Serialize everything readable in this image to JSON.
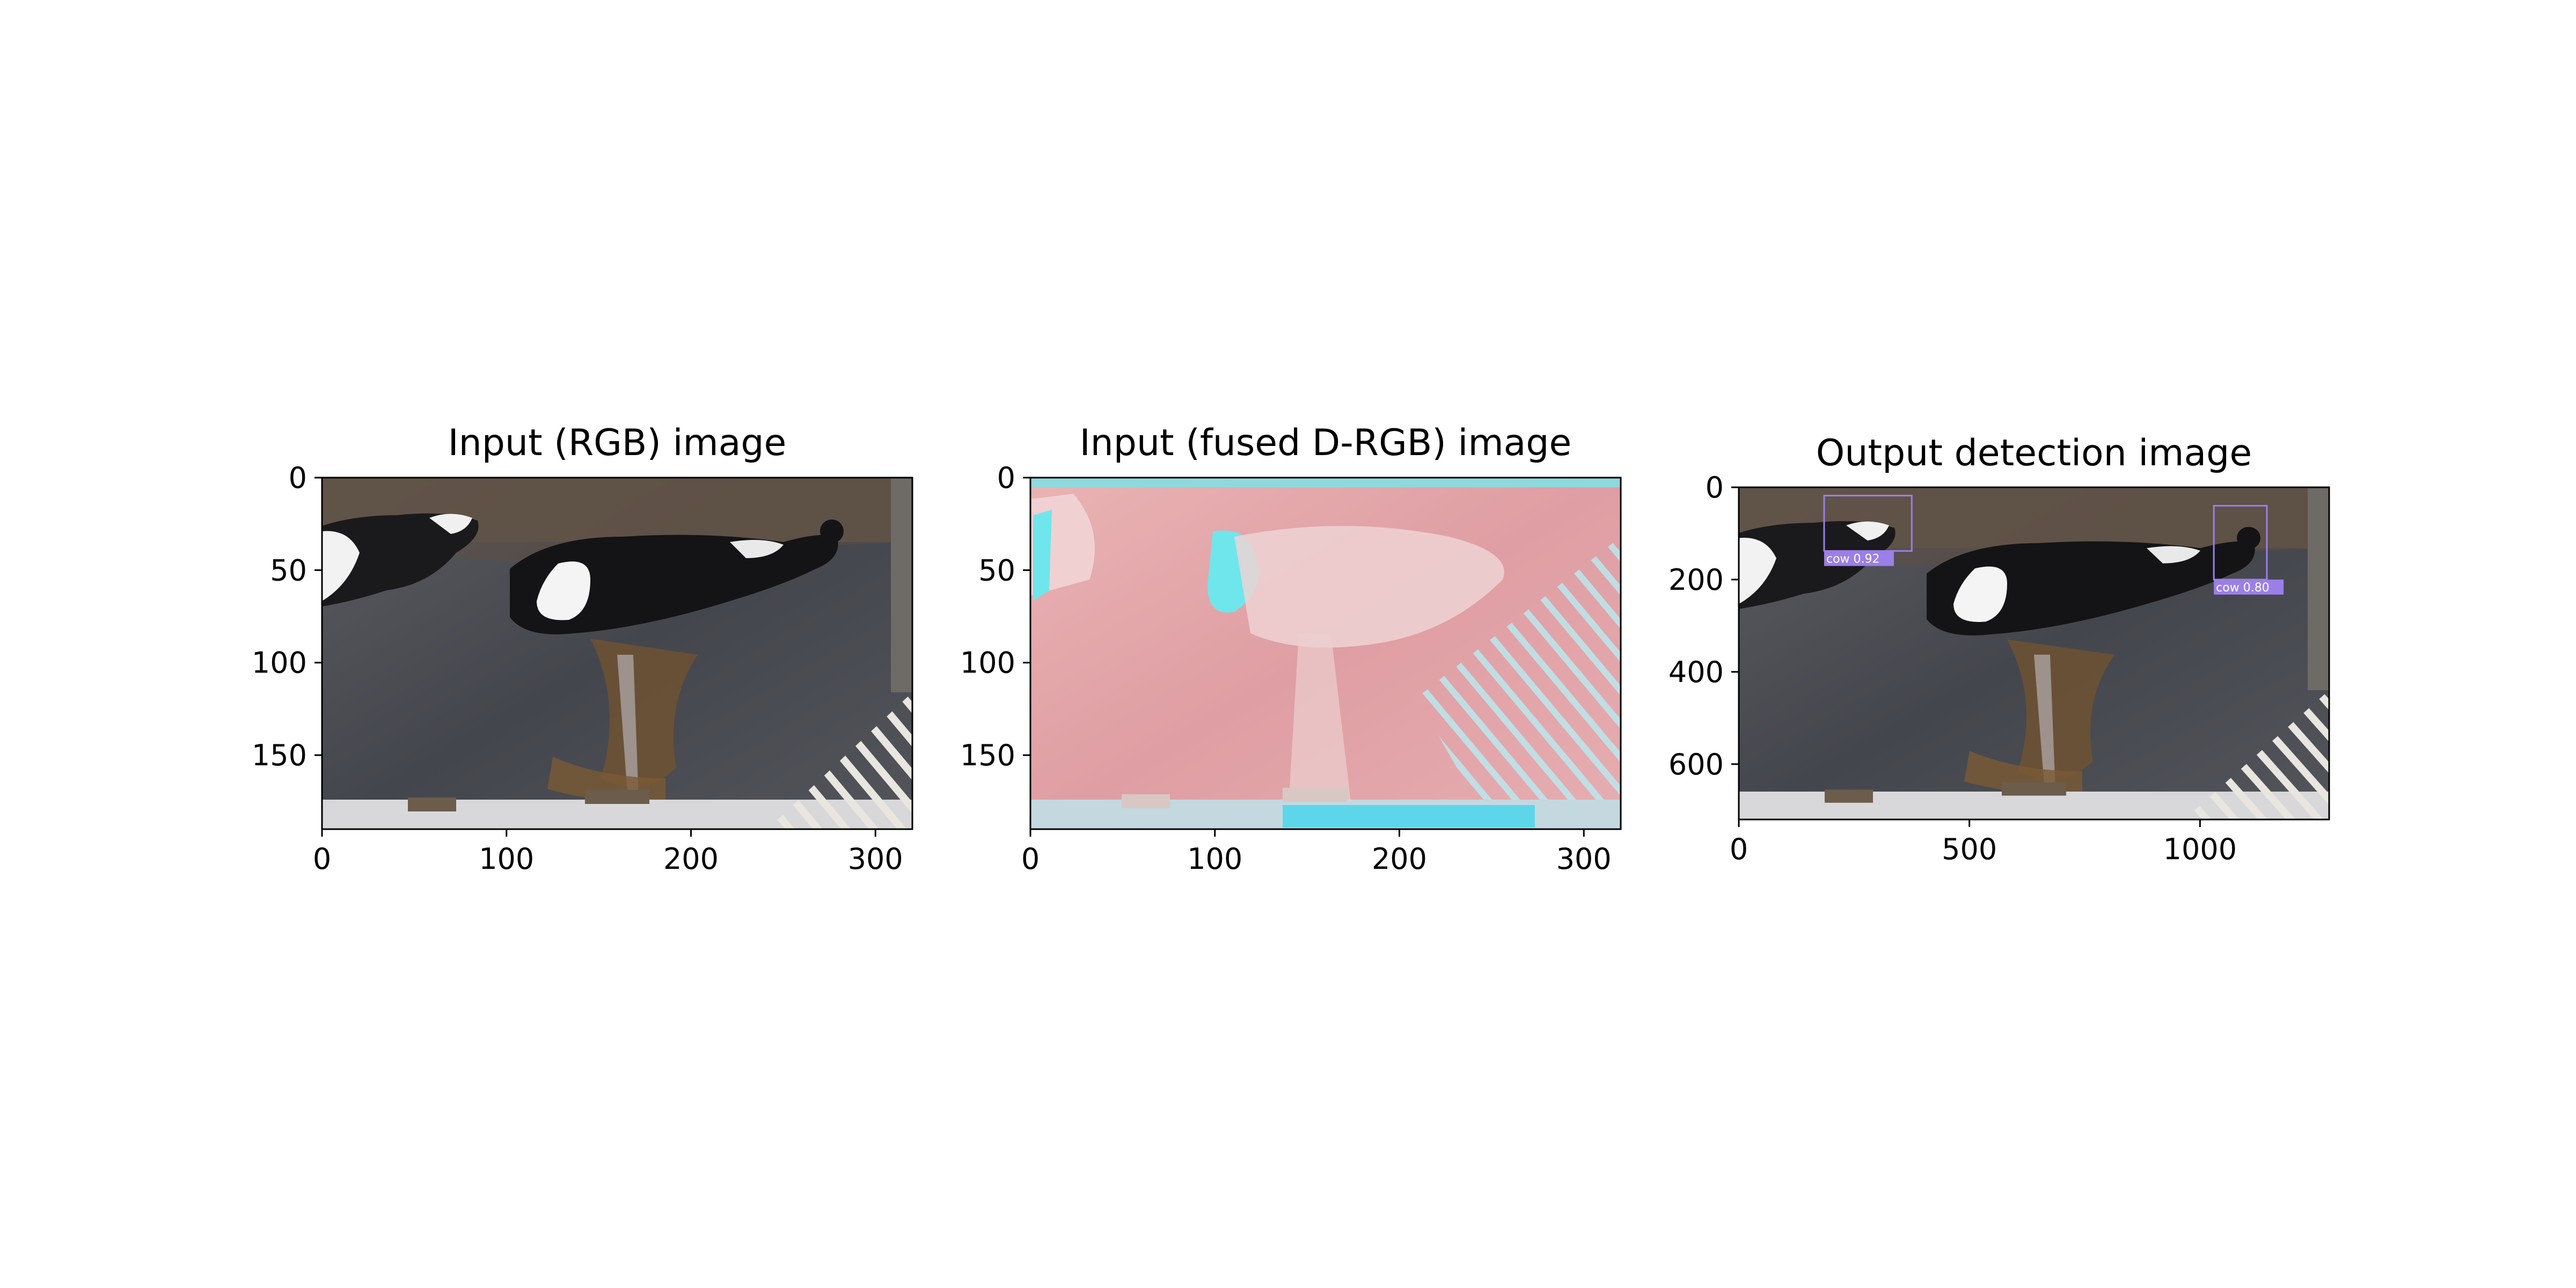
{
  "figure": {
    "panels": [
      {
        "title": "Input (RGB) image",
        "x_ticks": [
          "0",
          "100",
          "200",
          "300"
        ],
        "y_ticks": [
          "0",
          "50",
          "100",
          "150"
        ],
        "x_tick_values": [
          0,
          100,
          200,
          300
        ],
        "y_tick_values": [
          0,
          50,
          100,
          150
        ],
        "x_range": [
          0,
          320
        ],
        "y_range": [
          0,
          190
        ]
      },
      {
        "title": "Input (fused D-RGB) image",
        "x_ticks": [
          "0",
          "100",
          "200",
          "300"
        ],
        "y_ticks": [
          "0",
          "50",
          "100",
          "150"
        ],
        "x_tick_values": [
          0,
          100,
          200,
          300
        ],
        "y_tick_values": [
          0,
          50,
          100,
          150
        ],
        "x_range": [
          0,
          320
        ],
        "y_range": [
          0,
          190
        ]
      },
      {
        "title": "Output detection image",
        "x_ticks": [
          "0",
          "500",
          "1000"
        ],
        "y_ticks": [
          "0",
          "200",
          "400",
          "600"
        ],
        "x_tick_values": [
          0,
          500,
          1000
        ],
        "y_tick_values": [
          0,
          200,
          400,
          600
        ],
        "x_range": [
          0,
          1280
        ],
        "y_range": [
          0,
          720
        ],
        "detections": [
          {
            "label": "cow  0.92",
            "class": "cow",
            "score": 0.92,
            "x_min": 185,
            "y_min": 18,
            "x_max": 375,
            "y_max": 138
          },
          {
            "label": "cow  0.80",
            "class": "cow",
            "score": 0.8,
            "x_min": 1030,
            "y_min": 40,
            "x_max": 1145,
            "y_max": 200
          }
        ]
      }
    ]
  },
  "colors": {
    "box": "#9b7fe8",
    "rgb_floor": "#4c4d55",
    "fused_base": "#e3a6a8",
    "fused_cyan": "#6ee6ec"
  }
}
